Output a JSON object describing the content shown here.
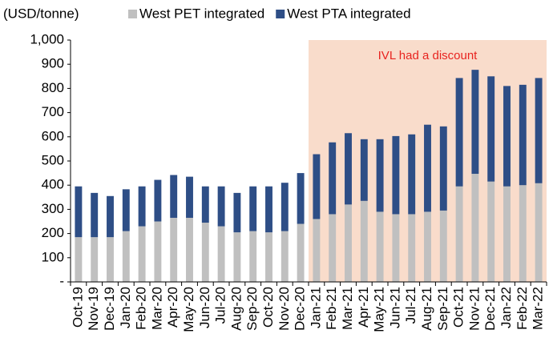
{
  "chart_data": {
    "type": "stacked-bar",
    "y_label": "(USD/tonne)",
    "categories": [
      "Oct-19",
      "Nov-19",
      "Dec-19",
      "Jan-20",
      "Feb-20",
      "Mar-20",
      "Apr-20",
      "May-20",
      "Jun-20",
      "Jul-20",
      "Aug-20",
      "Sep-20",
      "Oct-20",
      "Nov-20",
      "Dec-20",
      "Jan-21",
      "Feb-21",
      "Mar-21",
      "Apr-21",
      "May-21",
      "Jun-21",
      "Jul-21",
      "Aug-21",
      "Sep-21",
      "Oct-21",
      "Nov-21",
      "Dec-21",
      "Jan-22",
      "Feb-22",
      "Mar-22"
    ],
    "series": [
      {
        "name": "West PET integrated",
        "color": "#c0c0c0",
        "values": [
          185,
          185,
          185,
          210,
          230,
          250,
          265,
          265,
          245,
          230,
          205,
          210,
          205,
          210,
          240,
          260,
          280,
          320,
          335,
          290,
          280,
          280,
          290,
          295,
          395,
          447,
          415,
          395,
          400,
          408
        ]
      },
      {
        "name": "West PTA integrated",
        "color": "#2e4e86",
        "values": [
          210,
          183,
          170,
          173,
          165,
          172,
          177,
          170,
          150,
          165,
          163,
          185,
          190,
          200,
          210,
          268,
          297,
          295,
          255,
          300,
          323,
          330,
          360,
          348,
          448,
          430,
          435,
          415,
          415,
          435
        ]
      }
    ],
    "ylim": [
      0,
      1000
    ],
    "yticks": [
      {
        "value": 0,
        "label": "-"
      },
      100,
      200,
      300,
      400,
      500,
      600,
      700,
      800,
      900,
      {
        "value": 1000,
        "label": "1,000"
      }
    ],
    "highlight": {
      "text": "IVL had a discount",
      "from": "Jan-21",
      "color": "#f9dccb",
      "text_color": "#e8231f"
    }
  }
}
